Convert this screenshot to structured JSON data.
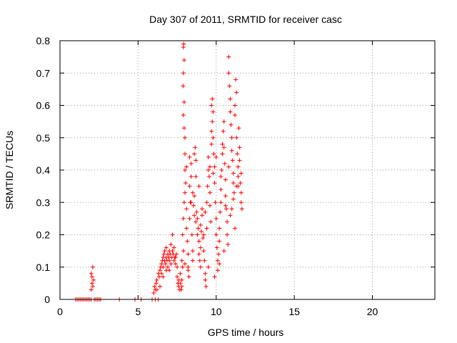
{
  "chart_data": {
    "type": "scatter",
    "title": "Day 307 of 2011, SRMTID for receiver casc",
    "xlabel": "GPS time / hours",
    "ylabel": "SRMTID / TECUs",
    "xlim": [
      0,
      24
    ],
    "ylim": [
      0,
      0.8
    ],
    "x_ticks": [
      0,
      5,
      10,
      15,
      20
    ],
    "y_ticks": [
      0,
      0.1,
      0.2,
      0.3,
      0.4,
      0.5,
      0.6,
      0.7,
      0.8
    ],
    "x_tick_labels": [
      "0",
      "5",
      "10",
      "15",
      "20"
    ],
    "y_tick_labels": [
      "0",
      "0.1",
      "0.2",
      "0.3",
      "0.4",
      "0.5",
      "0.6",
      "0.7",
      "0.8"
    ],
    "grid": true,
    "marker": "+",
    "color": "#ff0000",
    "series": [
      {
        "name": "SRMTID",
        "points": [
          [
            1.0,
            0
          ],
          [
            1.1,
            0
          ],
          [
            1.2,
            0
          ],
          [
            1.3,
            0
          ],
          [
            1.4,
            0
          ],
          [
            1.5,
            0
          ],
          [
            1.6,
            0
          ],
          [
            1.7,
            0
          ],
          [
            1.8,
            0
          ],
          [
            1.9,
            0
          ],
          [
            2.0,
            0.0
          ],
          [
            2.0,
            0.03
          ],
          [
            2.05,
            0.05
          ],
          [
            2.05,
            0.07
          ],
          [
            2.1,
            0.1
          ],
          [
            2.1,
            0.04
          ],
          [
            2.15,
            0.06
          ],
          [
            2.0,
            0.08
          ],
          [
            2.2,
            0.0
          ],
          [
            2.3,
            0
          ],
          [
            2.4,
            0
          ],
          [
            2.5,
            0
          ],
          [
            2.6,
            0
          ],
          [
            3.8,
            0
          ],
          [
            4.8,
            0
          ],
          [
            5.2,
            0
          ],
          [
            5.9,
            0
          ],
          [
            6.1,
            0
          ],
          [
            6.3,
            0
          ],
          [
            6.0,
            0.02
          ],
          [
            6.05,
            0.04
          ],
          [
            6.1,
            0.03
          ],
          [
            6.15,
            0.05
          ],
          [
            6.2,
            0.06
          ],
          [
            6.3,
            0.08
          ],
          [
            6.35,
            0.07
          ],
          [
            6.4,
            0.09
          ],
          [
            6.45,
            0.1
          ],
          [
            6.5,
            0.11
          ],
          [
            6.5,
            0.08
          ],
          [
            6.55,
            0.12
          ],
          [
            6.6,
            0.13
          ],
          [
            6.6,
            0.1
          ],
          [
            6.65,
            0.14
          ],
          [
            6.7,
            0.12
          ],
          [
            6.7,
            0.15
          ],
          [
            6.75,
            0.11
          ],
          [
            6.8,
            0.13
          ],
          [
            6.8,
            0.16
          ],
          [
            6.85,
            0.12
          ],
          [
            6.9,
            0.14
          ],
          [
            6.9,
            0.1
          ],
          [
            6.95,
            0.13
          ],
          [
            7.0,
            0.15
          ],
          [
            7.0,
            0.12
          ],
          [
            7.05,
            0.14
          ],
          [
            7.1,
            0.17
          ],
          [
            7.1,
            0.11
          ],
          [
            7.15,
            0.13
          ],
          [
            7.2,
            0.15
          ],
          [
            7.2,
            0.2
          ],
          [
            7.25,
            0.14
          ],
          [
            7.3,
            0.12
          ],
          [
            7.3,
            0.16
          ],
          [
            7.35,
            0.13
          ],
          [
            7.4,
            0.11
          ],
          [
            7.45,
            0.14
          ],
          [
            7.5,
            0.1
          ],
          [
            7.5,
            0.07
          ],
          [
            7.55,
            0.05
          ],
          [
            7.6,
            0.04
          ],
          [
            7.6,
            0.06
          ],
          [
            7.65,
            0.03
          ],
          [
            7.7,
            0.05
          ],
          [
            7.7,
            0.08
          ],
          [
            7.75,
            0.03
          ],
          [
            7.8,
            0.04
          ],
          [
            7.8,
            0.06
          ],
          [
            7.85,
            0.1
          ],
          [
            7.85,
            0.2
          ],
          [
            7.9,
            0.25
          ],
          [
            7.9,
            0.15
          ],
          [
            7.95,
            0.3
          ],
          [
            7.9,
            0.78
          ],
          [
            7.92,
            0.79
          ],
          [
            7.95,
            0.74
          ],
          [
            7.9,
            0.7
          ],
          [
            7.88,
            0.66
          ],
          [
            7.95,
            0.61
          ],
          [
            7.9,
            0.57
          ],
          [
            7.95,
            0.53
          ],
          [
            8.0,
            0.5
          ],
          [
            8.0,
            0.45
          ],
          [
            8.0,
            0.4
          ],
          [
            8.05,
            0.36
          ],
          [
            8.0,
            0.33
          ],
          [
            8.1,
            0.28
          ],
          [
            8.1,
            0.22
          ],
          [
            8.15,
            0.18
          ],
          [
            8.2,
            0.14
          ],
          [
            8.2,
            0.1
          ],
          [
            8.25,
            0.07
          ],
          [
            8.3,
            0.25
          ],
          [
            8.3,
            0.35
          ],
          [
            8.35,
            0.3
          ],
          [
            8.4,
            0.38
          ],
          [
            8.4,
            0.42
          ],
          [
            8.45,
            0.2
          ],
          [
            8.5,
            0.15
          ],
          [
            8.5,
            0.12
          ],
          [
            8.55,
            0.29
          ],
          [
            8.6,
            0.32
          ],
          [
            8.6,
            0.45
          ],
          [
            8.65,
            0.47
          ],
          [
            8.7,
            0.43
          ],
          [
            8.7,
            0.38
          ],
          [
            8.75,
            0.27
          ],
          [
            8.8,
            0.25
          ],
          [
            8.8,
            0.2
          ],
          [
            8.85,
            0.22
          ],
          [
            8.9,
            0.18
          ],
          [
            8.9,
            0.14
          ],
          [
            8.95,
            0.12
          ],
          [
            9.0,
            0.1
          ],
          [
            9.0,
            0.16
          ],
          [
            9.05,
            0.21
          ],
          [
            9.1,
            0.28
          ],
          [
            9.1,
            0.26
          ],
          [
            9.15,
            0.19
          ],
          [
            9.2,
            0.15
          ],
          [
            9.25,
            0.12
          ],
          [
            9.3,
            0.08
          ],
          [
            9.3,
            0.06
          ],
          [
            9.35,
            0.04
          ],
          [
            9.4,
            0.22
          ],
          [
            9.4,
            0.3
          ],
          [
            9.45,
            0.35
          ],
          [
            9.5,
            0.4
          ],
          [
            9.5,
            0.44
          ],
          [
            9.55,
            0.38
          ],
          [
            9.6,
            0.33
          ],
          [
            9.6,
            0.29
          ],
          [
            9.65,
            0.24
          ],
          [
            9.7,
            0.48
          ],
          [
            9.7,
            0.52
          ],
          [
            9.75,
            0.55
          ],
          [
            9.7,
            0.6
          ],
          [
            9.75,
            0.62
          ],
          [
            9.8,
            0.58
          ],
          [
            9.8,
            0.5
          ],
          [
            9.85,
            0.45
          ],
          [
            9.9,
            0.41
          ],
          [
            9.9,
            0.36
          ],
          [
            9.95,
            0.3
          ],
          [
            10.0,
            0.25
          ],
          [
            10.0,
            0.2
          ],
          [
            10.05,
            0.16
          ],
          [
            10.1,
            0.12
          ],
          [
            10.1,
            0.09
          ],
          [
            10.15,
            0.14
          ],
          [
            10.2,
            0.18
          ],
          [
            10.2,
            0.22
          ],
          [
            10.25,
            0.27
          ],
          [
            10.3,
            0.3
          ],
          [
            10.3,
            0.34
          ],
          [
            10.35,
            0.4
          ],
          [
            10.4,
            0.45
          ],
          [
            10.4,
            0.48
          ],
          [
            10.45,
            0.52
          ],
          [
            10.5,
            0.55
          ],
          [
            10.5,
            0.47
          ],
          [
            10.55,
            0.42
          ],
          [
            10.6,
            0.37
          ],
          [
            10.6,
            0.32
          ],
          [
            10.65,
            0.28
          ],
          [
            10.7,
            0.24
          ],
          [
            10.7,
            0.2
          ],
          [
            10.75,
            0.17
          ],
          [
            10.8,
            0.75
          ],
          [
            10.8,
            0.7
          ],
          [
            10.85,
            0.66
          ],
          [
            10.9,
            0.62
          ],
          [
            10.9,
            0.58
          ],
          [
            10.95,
            0.54
          ],
          [
            11.0,
            0.5
          ],
          [
            11.0,
            0.46
          ],
          [
            11.05,
            0.43
          ],
          [
            11.1,
            0.39
          ],
          [
            11.1,
            0.36
          ],
          [
            11.15,
            0.33
          ],
          [
            11.2,
            0.6
          ],
          [
            11.2,
            0.57
          ],
          [
            11.25,
            0.68
          ],
          [
            11.3,
            0.64
          ],
          [
            11.3,
            0.5
          ],
          [
            11.35,
            0.45
          ],
          [
            11.4,
            0.41
          ],
          [
            11.4,
            0.38
          ],
          [
            11.45,
            0.53
          ],
          [
            11.5,
            0.47
          ],
          [
            11.5,
            0.43
          ],
          [
            11.55,
            0.36
          ],
          [
            11.6,
            0.33
          ],
          [
            11.6,
            0.3
          ],
          [
            11.65,
            0.28
          ],
          [
            11.3,
            0.35
          ],
          [
            11.1,
            0.31
          ],
          [
            10.9,
            0.26
          ],
          [
            10.6,
            0.29
          ],
          [
            10.3,
            0.38
          ],
          [
            10.0,
            0.44
          ],
          [
            9.8,
            0.39
          ],
          [
            9.6,
            0.41
          ],
          [
            9.3,
            0.27
          ],
          [
            9.0,
            0.23
          ],
          [
            8.7,
            0.24
          ],
          [
            8.5,
            0.33
          ],
          [
            8.3,
            0.44
          ],
          [
            8.1,
            0.41
          ],
          [
            10.8,
            0.41
          ],
          [
            11.0,
            0.28
          ],
          [
            11.2,
            0.22
          ],
          [
            11.4,
            0.35
          ],
          [
            11.6,
            0.39
          ],
          [
            10.5,
            0.15
          ],
          [
            10.2,
            0.11
          ],
          [
            9.9,
            0.07
          ],
          [
            9.5,
            0.1
          ],
          [
            9.2,
            0.2
          ],
          [
            8.9,
            0.35
          ],
          [
            8.6,
            0.26
          ],
          [
            8.4,
            0.3
          ],
          [
            8.2,
            0.09
          ],
          [
            8.0,
            0.11
          ],
          [
            7.8,
            0.12
          ],
          [
            7.4,
            0.13
          ],
          [
            7.0,
            0.09
          ],
          [
            6.8,
            0.09
          ],
          [
            6.6,
            0.07
          ],
          [
            6.4,
            0.04
          ],
          [
            6.2,
            0.03
          ]
        ]
      }
    ]
  }
}
